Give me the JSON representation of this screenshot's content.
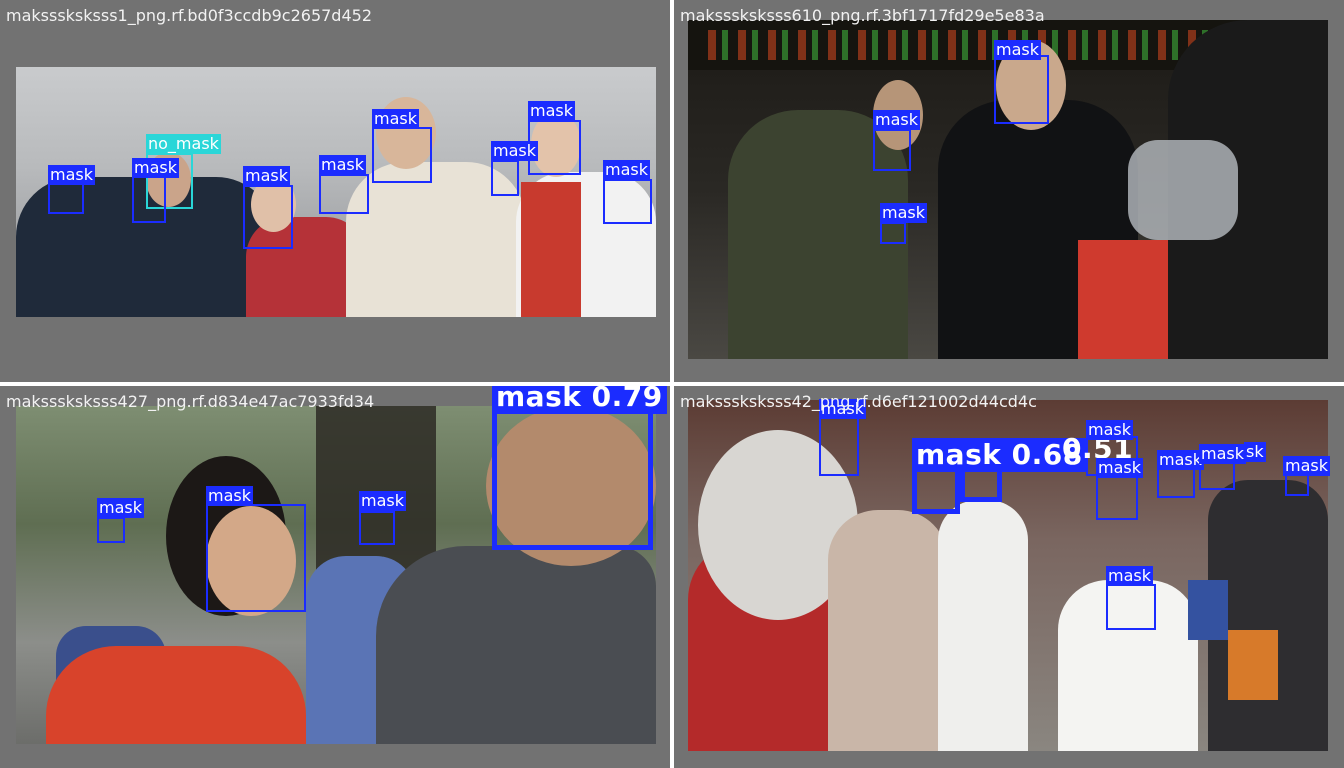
{
  "tiles": [
    {
      "title": "maksssksksss1_png.rf.bd0f3ccdb9c2657d452",
      "detections": [
        {
          "label": "mask"
        },
        {
          "label": "no_mask"
        },
        {
          "label": "mask"
        },
        {
          "label": "mask"
        },
        {
          "label": "mask"
        },
        {
          "label": "mask"
        },
        {
          "label": "mask"
        },
        {
          "label": "mask"
        },
        {
          "label": "mask"
        }
      ]
    },
    {
      "title": "maksssksksss610_png.rf.3bf1717fd29e5e83a",
      "detections": [
        {
          "label": "mask"
        },
        {
          "label": "mask"
        },
        {
          "label": "mask"
        }
      ]
    },
    {
      "title": "maksssksksss427_png.rf.d834e47ac7933fd34",
      "detections": [
        {
          "label": "mask"
        },
        {
          "label": "mask"
        },
        {
          "label": "mask"
        },
        {
          "label": "mask 0.79"
        }
      ]
    },
    {
      "title": "maksssksksss42_png.rf.d6ef121002d44cd4c",
      "detections": [
        {
          "label": "mask"
        },
        {
          "label": "mask 0.68"
        },
        {
          "label": "0.51"
        },
        {
          "label": "mask"
        },
        {
          "label": "mask"
        },
        {
          "label": "mask"
        },
        {
          "label": "mask"
        },
        {
          "label": "sk"
        },
        {
          "label": "mask"
        },
        {
          "label": "mask"
        }
      ]
    }
  ],
  "colors": {
    "mask_box": "#1b2cff",
    "no_mask_box": "#2ad6d8",
    "tile_bg": "#727272",
    "divider": "#ffffff"
  }
}
